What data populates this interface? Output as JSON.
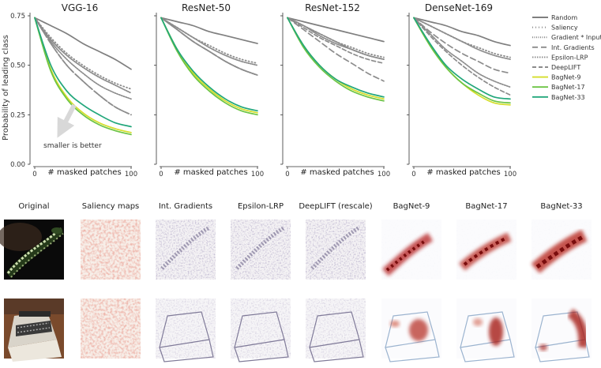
{
  "chart_data": {
    "type": "line",
    "ylabel": "Probability of leading class",
    "xlabel": "# masked patches",
    "xlim": [
      0,
      100
    ],
    "ylim": [
      0,
      0.75
    ],
    "xticks": [
      "0",
      "100"
    ],
    "yticks": [
      "0.00",
      "0.25",
      "0.50",
      "0.75"
    ],
    "legend_position": "right",
    "grid": false,
    "series_styles": [
      {
        "name": "Random",
        "color": "#7f7f7f",
        "dash": "",
        "width": 1.7
      },
      {
        "name": "Saliency",
        "color": "#8c8c8c",
        "dash": "1 3",
        "width": 1.8
      },
      {
        "name": "Gradient * Input",
        "color": "#8c8c8c",
        "dash": "1 1.5",
        "width": 1.8
      },
      {
        "name": "Int. Gradients",
        "color": "#8c8c8c",
        "dash": "7 4",
        "width": 1.7
      },
      {
        "name": "Epsilon-LRP",
        "color": "#8c8c8c",
        "dash": "1.5 1.5",
        "width": 1.7
      },
      {
        "name": "DeepLIFT",
        "color": "#8c8c8c",
        "dash": "5 3",
        "width": 1.7
      },
      {
        "name": "BagNet-9",
        "color": "#d4de2a",
        "dash": "",
        "width": 1.7
      },
      {
        "name": "BagNet-17",
        "color": "#6cc444",
        "dash": "",
        "width": 1.7
      },
      {
        "name": "BagNet-33",
        "color": "#22a77b",
        "dash": "",
        "width": 1.7
      }
    ],
    "panels": [
      {
        "title": "VGG-16",
        "annotation": "smaller is better",
        "series": [
          {
            "name": "Random",
            "values": [
              0.74,
              0.7,
              0.66,
              0.61,
              0.57,
              0.53,
              0.48
            ]
          },
          {
            "name": "Saliency",
            "values": [
              0.74,
              0.64,
              0.56,
              0.5,
              0.45,
              0.41,
              0.38
            ]
          },
          {
            "name": "Gradient * Input",
            "values": [
              0.74,
              0.63,
              0.55,
              0.49,
              0.44,
              0.4,
              0.36
            ]
          },
          {
            "name": "Int. Gradients",
            "values": [
              0.74,
              0.61,
              0.5,
              0.42,
              0.35,
              0.29,
              0.25
            ]
          },
          {
            "name": "Epsilon-LRP",
            "values": [
              0.74,
              0.62,
              0.53,
              0.46,
              0.4,
              0.36,
              0.33
            ]
          },
          {
            "name": "DeepLIFT",
            "values": [
              0.74,
              0.61,
              0.5,
              0.42,
              0.35,
              0.29,
              0.25
            ]
          },
          {
            "name": "BagNet-9",
            "values": [
              0.74,
              0.48,
              0.34,
              0.26,
              0.21,
              0.18,
              0.16
            ]
          },
          {
            "name": "BagNet-17",
            "values": [
              0.74,
              0.47,
              0.33,
              0.25,
              0.2,
              0.17,
              0.15
            ]
          },
          {
            "name": "BagNet-33",
            "values": [
              0.74,
              0.5,
              0.37,
              0.3,
              0.25,
              0.21,
              0.19
            ]
          }
        ]
      },
      {
        "title": "ResNet-50",
        "series": [
          {
            "name": "Random",
            "values": [
              0.74,
              0.72,
              0.7,
              0.67,
              0.65,
              0.63,
              0.61
            ]
          },
          {
            "name": "Saliency",
            "values": [
              0.74,
              0.69,
              0.64,
              0.6,
              0.56,
              0.53,
              0.51
            ]
          },
          {
            "name": "Gradient * Input",
            "values": [
              0.74,
              0.69,
              0.64,
              0.59,
              0.55,
              0.52,
              0.5
            ]
          },
          {
            "name": "Int. Gradients",
            "values": [
              0.74,
              0.68,
              0.62,
              0.57,
              0.52,
              0.48,
              0.45
            ]
          },
          {
            "name": "Epsilon-LRP",
            "values": [
              0.74,
              0.68,
              0.62,
              0.57,
              0.52,
              0.48,
              0.45
            ]
          },
          {
            "name": "DeepLIFT",
            "values": [
              0.74,
              0.68,
              0.62,
              0.57,
              0.52,
              0.48,
              0.45
            ]
          },
          {
            "name": "BagNet-9",
            "values": [
              0.74,
              0.58,
              0.46,
              0.38,
              0.32,
              0.28,
              0.26
            ]
          },
          {
            "name": "BagNet-17",
            "values": [
              0.74,
              0.57,
              0.45,
              0.37,
              0.31,
              0.27,
              0.25
            ]
          },
          {
            "name": "BagNet-33",
            "values": [
              0.74,
              0.58,
              0.47,
              0.39,
              0.33,
              0.29,
              0.27
            ]
          }
        ]
      },
      {
        "title": "ResNet-152",
        "series": [
          {
            "name": "Random",
            "values": [
              0.74,
              0.72,
              0.7,
              0.68,
              0.66,
              0.64,
              0.62
            ]
          },
          {
            "name": "Saliency",
            "values": [
              0.74,
              0.7,
              0.66,
              0.62,
              0.59,
              0.56,
              0.54
            ]
          },
          {
            "name": "Gradient * Input",
            "values": [
              0.74,
              0.7,
              0.65,
              0.61,
              0.58,
              0.55,
              0.53
            ]
          },
          {
            "name": "Int. Gradients",
            "values": [
              0.74,
              0.68,
              0.62,
              0.56,
              0.51,
              0.46,
              0.42
            ]
          },
          {
            "name": "Epsilon-LRP",
            "values": [
              0.74,
              0.7,
              0.66,
              0.62,
              0.58,
              0.55,
              0.53
            ]
          },
          {
            "name": "DeepLIFT",
            "values": [
              0.74,
              0.69,
              0.64,
              0.6,
              0.56,
              0.53,
              0.51
            ]
          },
          {
            "name": "BagNet-9",
            "values": [
              0.74,
              0.6,
              0.5,
              0.43,
              0.38,
              0.35,
              0.33
            ]
          },
          {
            "name": "BagNet-17",
            "values": [
              0.74,
              0.59,
              0.49,
              0.42,
              0.37,
              0.34,
              0.32
            ]
          },
          {
            "name": "BagNet-33",
            "values": [
              0.74,
              0.6,
              0.5,
              0.43,
              0.39,
              0.36,
              0.34
            ]
          }
        ]
      },
      {
        "title": "DenseNet-169",
        "series": [
          {
            "name": "Random",
            "values": [
              0.74,
              0.72,
              0.7,
              0.67,
              0.65,
              0.62,
              0.6
            ]
          },
          {
            "name": "Saliency",
            "values": [
              0.74,
              0.7,
              0.66,
              0.62,
              0.59,
              0.56,
              0.54
            ]
          },
          {
            "name": "Gradient * Input",
            "values": [
              0.74,
              0.7,
              0.66,
              0.62,
              0.58,
              0.55,
              0.53
            ]
          },
          {
            "name": "Int. Gradients",
            "values": [
              0.74,
              0.67,
              0.61,
              0.56,
              0.52,
              0.48,
              0.46
            ]
          },
          {
            "name": "Epsilon-LRP",
            "values": [
              0.74,
              0.66,
              0.58,
              0.52,
              0.46,
              0.42,
              0.39
            ]
          },
          {
            "name": "DeepLIFT",
            "values": [
              0.74,
              0.65,
              0.57,
              0.5,
              0.44,
              0.39,
              0.35
            ]
          },
          {
            "name": "BagNet-9",
            "values": [
              0.74,
              0.6,
              0.49,
              0.41,
              0.35,
              0.31,
              0.3
            ]
          },
          {
            "name": "BagNet-17",
            "values": [
              0.74,
              0.6,
              0.49,
              0.41,
              0.36,
              0.32,
              0.31
            ]
          },
          {
            "name": "BagNet-33",
            "values": [
              0.74,
              0.61,
              0.5,
              0.43,
              0.38,
              0.34,
              0.33
            ]
          }
        ]
      }
    ],
    "x_points": [
      0,
      16.7,
      33.3,
      50,
      66.7,
      83.3,
      100
    ]
  },
  "heatmaps": {
    "column_titles": [
      "Original",
      "Saliency maps",
      "Int. Gradients",
      "Epsilon-LRP",
      "DeepLIFT (rescale)",
      "BagNet-9",
      "BagNet-17",
      "BagNet-33"
    ],
    "rows": [
      {
        "name": "snake-row"
      },
      {
        "name": "typewriter-row"
      }
    ]
  }
}
